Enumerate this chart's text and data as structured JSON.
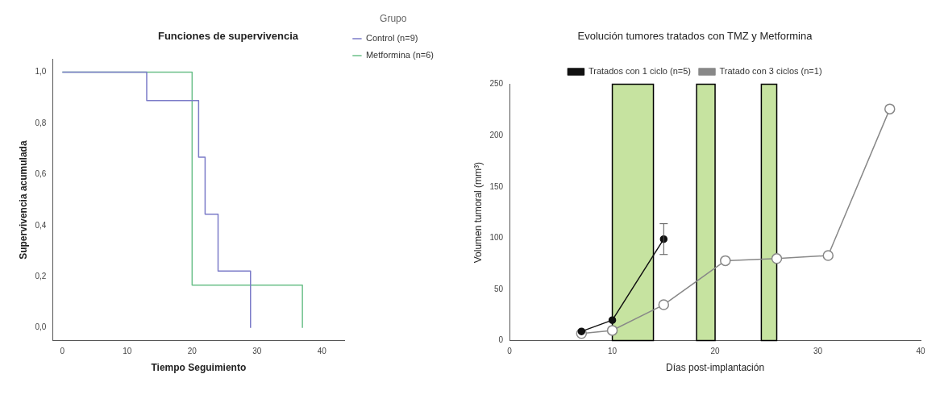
{
  "chart_data": [
    {
      "type": "step",
      "title": "Funciones de supervivencia",
      "xlabel": "Tiempo Seguimiento",
      "ylabel": "Supervivencia acumulada",
      "legend_title": "Grupo",
      "legend": "top right",
      "grid": false,
      "marker": "none",
      "line_style": "solid",
      "xlim": [
        -1.5,
        43.5
      ],
      "xticks": [
        0,
        10,
        20,
        30,
        40
      ],
      "ylim": [
        -0.05,
        1.05
      ],
      "yticks": [
        {
          "value": 0,
          "label": "0,0"
        },
        {
          "value": 0.2,
          "label": "0,2"
        },
        {
          "value": 0.4,
          "label": "0,4"
        },
        {
          "value": 0.6,
          "label": "0,6"
        },
        {
          "value": 0.8,
          "label": "0,8"
        },
        {
          "value": 1,
          "label": "1,0"
        }
      ],
      "series": [
        {
          "name": "Control (n=9)",
          "color": "#7b7bc8",
          "x": [
            0,
            13,
            21,
            22,
            24,
            29
          ],
          "values": [
            1,
            0.889,
            0.667,
            0.444,
            0.222,
            0
          ]
        },
        {
          "name": "Metformina (n=6)",
          "color": "#6cc08a",
          "x": [
            0,
            20,
            37
          ],
          "values": [
            1,
            0.167,
            0
          ]
        }
      ]
    },
    {
      "type": "line",
      "title": "Evolución tumores tratados con TMZ y Metformina",
      "xlabel": "Días post-implantación",
      "ylabel": "Volumen tumoral (mm³)",
      "legend": "top",
      "grid": false,
      "marker": "circle",
      "line_style": "solid",
      "xlim": [
        0,
        40
      ],
      "xticks": [
        0,
        10,
        20,
        30,
        40
      ],
      "ylim": [
        0,
        250
      ],
      "yticks": [
        0,
        50,
        100,
        150,
        200,
        250
      ],
      "bands": [
        {
          "axis": "x",
          "from": 10,
          "to": 14,
          "color": "#c6e3a0"
        },
        {
          "axis": "x",
          "from": 18.2,
          "to": 20,
          "color": "#c6e3a0"
        },
        {
          "axis": "x",
          "from": 24.5,
          "to": 26,
          "color": "#c6e3a0"
        }
      ],
      "series": [
        {
          "name": "Tratados con 1 ciclo (n=5)",
          "color": "#111111",
          "x": [
            7,
            10,
            15
          ],
          "values": [
            9,
            20,
            99
          ],
          "errors": [
            null,
            null,
            15
          ]
        },
        {
          "name": "Tratado con 3 ciclos (n=1)",
          "color": "#888888",
          "x": [
            7,
            10,
            15,
            21,
            26,
            31,
            37
          ],
          "values": [
            7,
            10,
            35,
            78,
            80,
            83,
            226
          ]
        }
      ]
    }
  ]
}
